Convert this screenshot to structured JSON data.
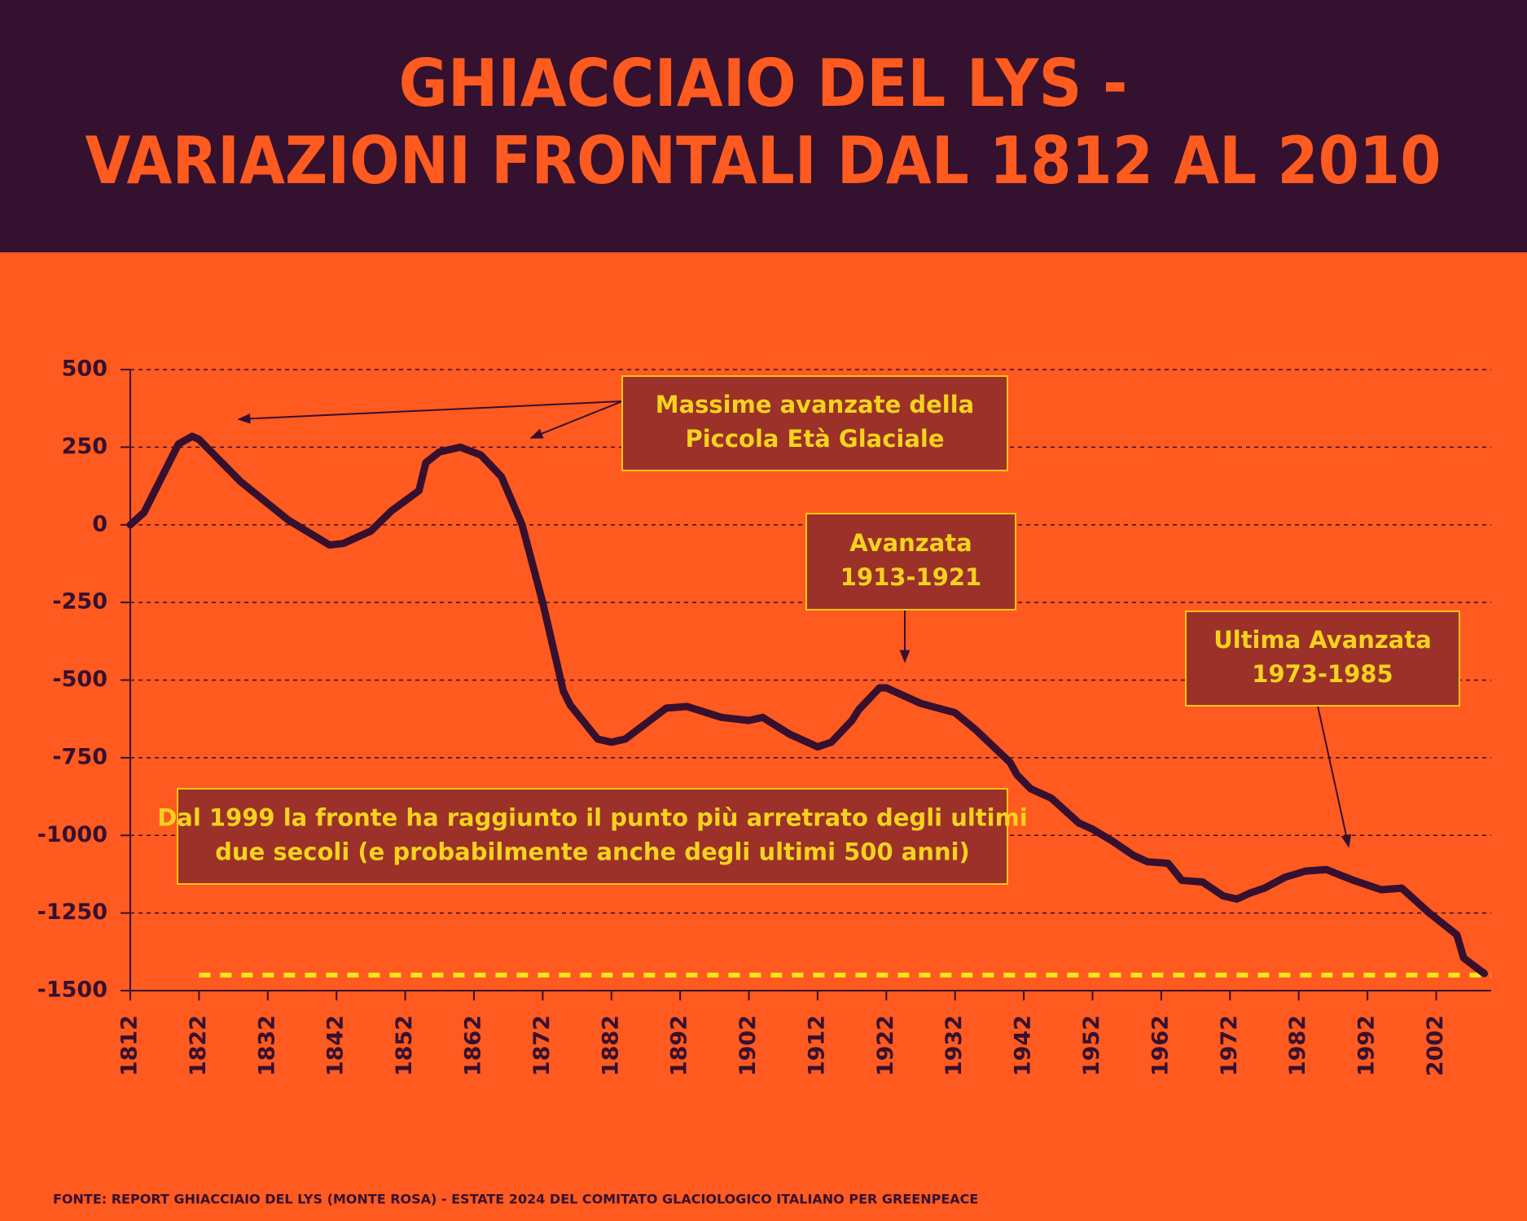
{
  "chart_data": {
    "type": "line",
    "title": [
      "GHIACCIAIO DEL LYS -",
      "VARIAZIONI FRONTALI DAL 1812 AL 2010"
    ],
    "source": "FONTE: REPORT GHIACCIAIO DEL LYS (MONTE ROSA) - ESTATE 2024 DEL COMITATO GLACIOLOGICO ITALIANO PER GREENPEACE",
    "x": [
      1812,
      1814,
      1819,
      1821,
      1822,
      1828,
      1835,
      1841,
      1843,
      1847,
      1850,
      1854,
      1855,
      1857,
      1860,
      1863,
      1866,
      1869,
      1872,
      1875,
      1876,
      1880,
      1882,
      1884,
      1890,
      1893,
      1898,
      1902,
      1904,
      1908,
      1912,
      1914,
      1917,
      1918,
      1921,
      1922,
      1925,
      1927,
      1932,
      1935,
      1940,
      1941,
      1943,
      1946,
      1950,
      1952,
      1955,
      1958,
      1960,
      1963,
      1965,
      1968,
      1971,
      1973,
      1975,
      1977,
      1980,
      1983,
      1986,
      1990,
      1994,
      1997,
      2001,
      2005,
      2006,
      2009
    ],
    "series": [
      {
        "color": "#36102f",
        "values": [
          0,
          40,
          260,
          285,
          275,
          140,
          15,
          -65,
          -60,
          -20,
          45,
          110,
          200,
          235,
          250,
          225,
          155,
          0,
          -250,
          -535,
          -580,
          -690,
          -700,
          -690,
          -590,
          -585,
          -620,
          -630,
          -620,
          -675,
          -715,
          -700,
          -630,
          -595,
          -525,
          -525,
          -555,
          -575,
          -605,
          -660,
          -765,
          -805,
          -850,
          -880,
          -960,
          -980,
          -1020,
          -1065,
          -1085,
          -1090,
          -1145,
          -1150,
          -1195,
          -1205,
          -1185,
          -1170,
          -1135,
          -1115,
          -1110,
          -1145,
          -1175,
          -1170,
          -1250,
          -1320,
          -1395,
          -1445
        ]
      }
    ],
    "xlim": [
      1812,
      2010
    ],
    "xticks": [
      1812,
      1822,
      1832,
      1842,
      1852,
      1862,
      1872,
      1882,
      1892,
      1902,
      1912,
      1922,
      1932,
      1942,
      1952,
      1962,
      1972,
      1982,
      1992,
      2002
    ],
    "ylim": [
      -1500,
      500
    ],
    "yticks": [
      -1500,
      -1250,
      -1000,
      -750,
      -500,
      -250,
      0,
      250,
      500
    ],
    "grid": true,
    "reference_line": {
      "y": -1450,
      "x": [
        1822,
        2010
      ],
      "color": "#f5e61e"
    },
    "annotations": [
      {
        "lines": [
          "Massime avanzate della",
          "Piccola Età Glaciale"
        ]
      },
      {
        "lines": [
          "Avanzata",
          "1913-1921"
        ]
      },
      {
        "lines": [
          "Ultima Avanzata",
          "1973-1985"
        ]
      },
      {
        "lines": [
          "Dal 1999 la fronte ha raggiunto il punto più arretrato degli ultimi",
          "due secoli (e probabilmente anche degli ultimi 500 anni)"
        ]
      }
    ]
  }
}
